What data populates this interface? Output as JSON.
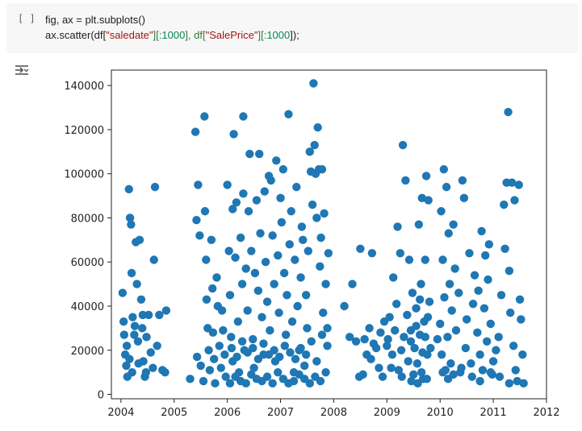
{
  "cell": {
    "run_bracket": "[ ]",
    "code_line1": "fig, ax = plt.subplots()",
    "code_line2_parts": [
      "ax.scatter(df[",
      "\"saledate\"",
      "][",
      ":1000",
      "], df[",
      "\"SalePrice\"",
      "][",
      ":1000",
      "]);"
    ]
  },
  "output": {
    "icon": "output-toggle-icon"
  },
  "colors": {
    "points": "#1f77b4",
    "cell_background": "#f7f7f7"
  },
  "chart_data": {
    "type": "scatter",
    "title": "",
    "xlabel": "",
    "ylabel": "",
    "xlim": [
      2003.82,
      2012.0
    ],
    "ylim": [
      -2000,
      147000
    ],
    "x_ticks": [
      "2004",
      "2005",
      "2006",
      "2007",
      "2008",
      "2009",
      "2010",
      "2011",
      "2012"
    ],
    "y_ticks": [
      "0",
      "20000",
      "40000",
      "60000",
      "80000",
      "100000",
      "120000",
      "140000"
    ],
    "grid": false,
    "points": [
      [
        2004.03,
        46000
      ],
      [
        2004.05,
        33000
      ],
      [
        2004.08,
        18000
      ],
      [
        2004.1,
        13000
      ],
      [
        2004.12,
        8000
      ],
      [
        2004.15,
        93000
      ],
      [
        2004.17,
        80000
      ],
      [
        2004.19,
        77000
      ],
      [
        2004.2,
        55000
      ],
      [
        2004.22,
        35000
      ],
      [
        2004.25,
        27000
      ],
      [
        2004.28,
        69000
      ],
      [
        2004.3,
        50000
      ],
      [
        2004.32,
        24000
      ],
      [
        2004.35,
        70000
      ],
      [
        2004.38,
        43000
      ],
      [
        2004.4,
        30000
      ],
      [
        2004.42,
        15000
      ],
      [
        2004.45,
        8000
      ],
      [
        2004.48,
        26000
      ],
      [
        2004.52,
        36000
      ],
      [
        2004.56,
        19000
      ],
      [
        2004.6,
        12000
      ],
      [
        2004.62,
        61000
      ],
      [
        2004.64,
        94000
      ],
      [
        2004.68,
        22000
      ],
      [
        2004.72,
        36000
      ],
      [
        2004.78,
        11000
      ],
      [
        2004.83,
        10000
      ],
      [
        2004.85,
        38000
      ],
      [
        2004.06,
        27000
      ],
      [
        2004.11,
        22000
      ],
      [
        2004.16,
        16000
      ],
      [
        2004.21,
        10000
      ],
      [
        2004.26,
        31000
      ],
      [
        2004.33,
        14000
      ],
      [
        2004.41,
        36000
      ],
      [
        2004.47,
        10000
      ],
      [
        2005.3,
        7000
      ],
      [
        2005.4,
        119000
      ],
      [
        2005.42,
        79000
      ],
      [
        2005.43,
        17000
      ],
      [
        2005.45,
        95000
      ],
      [
        2005.48,
        72000
      ],
      [
        2005.5,
        13000
      ],
      [
        2005.55,
        6000
      ],
      [
        2005.57,
        126000
      ],
      [
        2005.58,
        83000
      ],
      [
        2005.6,
        61000
      ],
      [
        2005.61,
        43000
      ],
      [
        2005.63,
        30000
      ],
      [
        2005.65,
        20000
      ],
      [
        2005.67,
        11000
      ],
      [
        2005.7,
        70000
      ],
      [
        2005.72,
        48000
      ],
      [
        2005.73,
        28000
      ],
      [
        2005.75,
        16000
      ],
      [
        2005.77,
        5000
      ],
      [
        2005.8,
        53000
      ],
      [
        2005.82,
        40000
      ],
      [
        2005.85,
        22000
      ],
      [
        2005.88,
        12000
      ],
      [
        2005.9,
        38000
      ],
      [
        2005.92,
        29000
      ],
      [
        2005.95,
        18000
      ],
      [
        2005.97,
        8000
      ],
      [
        2006.0,
        95000
      ],
      [
        2006.03,
        65000
      ],
      [
        2006.05,
        45000
      ],
      [
        2006.07,
        26000
      ],
      [
        2006.1,
        15000
      ],
      [
        2006.1,
        84000
      ],
      [
        2006.12,
        118000
      ],
      [
        2006.15,
        62000
      ],
      [
        2006.17,
        87000
      ],
      [
        2006.2,
        33000
      ],
      [
        2006.22,
        10000
      ],
      [
        2006.25,
        71000
      ],
      [
        2006.28,
        50000
      ],
      [
        2006.3,
        91000
      ],
      [
        2006.32,
        20000
      ],
      [
        2006.3,
        126000
      ],
      [
        2006.35,
        57000
      ],
      [
        2006.38,
        38000
      ],
      [
        2006.4,
        83000
      ],
      [
        2006.42,
        109000
      ],
      [
        2006.45,
        65000
      ],
      [
        2006.48,
        25000
      ],
      [
        2006.5,
        12000
      ],
      [
        2006.52,
        55000
      ],
      [
        2006.55,
        88000
      ],
      [
        2006.58,
        47000
      ],
      [
        2006.6,
        109000
      ],
      [
        2006.62,
        73000
      ],
      [
        2006.65,
        35000
      ],
      [
        2006.68,
        18000
      ],
      [
        2006.7,
        92000
      ],
      [
        2006.72,
        60000
      ],
      [
        2006.75,
        42000
      ],
      [
        2006.78,
        99000
      ],
      [
        2006.8,
        29000
      ],
      [
        2006.82,
        97000
      ],
      [
        2006.85,
        72000
      ],
      [
        2006.88,
        50000
      ],
      [
        2006.9,
        15000
      ],
      [
        2006.92,
        106000
      ],
      [
        2006.95,
        63000
      ],
      [
        2006.97,
        37000
      ],
      [
        2007.0,
        89000
      ],
      [
        2007.02,
        78000
      ],
      [
        2007.05,
        102000
      ],
      [
        2007.07,
        55000
      ],
      [
        2007.1,
        27000
      ],
      [
        2007.12,
        45000
      ],
      [
        2007.15,
        127000
      ],
      [
        2007.17,
        68000
      ],
      [
        2007.2,
        83000
      ],
      [
        2007.22,
        33000
      ],
      [
        2007.25,
        10000
      ],
      [
        2007.27,
        61000
      ],
      [
        2007.3,
        94000
      ],
      [
        2007.32,
        40000
      ],
      [
        2007.35,
        20000
      ],
      [
        2007.38,
        53000
      ],
      [
        2007.4,
        76000
      ],
      [
        2007.42,
        70000
      ],
      [
        2007.45,
        13000
      ],
      [
        2007.48,
        45000
      ],
      [
        2007.5,
        30000
      ],
      [
        2007.52,
        65000
      ],
      [
        2007.55,
        110000
      ],
      [
        2007.57,
        101000
      ],
      [
        2007.6,
        86000
      ],
      [
        2007.62,
        141000
      ],
      [
        2007.64,
        113000
      ],
      [
        2007.66,
        100000
      ],
      [
        2007.68,
        80000
      ],
      [
        2007.7,
        121000
      ],
      [
        2007.72,
        102000
      ],
      [
        2007.74,
        58000
      ],
      [
        2007.76,
        71000
      ],
      [
        2007.78,
        102000
      ],
      [
        2007.8,
        37000
      ],
      [
        2007.82,
        82000
      ],
      [
        2007.85,
        50000
      ],
      [
        2007.88,
        22000
      ],
      [
        2007.9,
        64000
      ],
      [
        2006.05,
        5000
      ],
      [
        2006.15,
        8000
      ],
      [
        2006.25,
        6000
      ],
      [
        2006.35,
        5000
      ],
      [
        2006.45,
        9000
      ],
      [
        2006.55,
        7000
      ],
      [
        2006.65,
        6000
      ],
      [
        2006.75,
        8000
      ],
      [
        2006.85,
        5000
      ],
      [
        2006.95,
        10000
      ],
      [
        2007.05,
        7000
      ],
      [
        2007.15,
        5000
      ],
      [
        2007.25,
        6000
      ],
      [
        2007.35,
        9000
      ],
      [
        2007.45,
        7000
      ],
      [
        2007.55,
        5000
      ],
      [
        2007.65,
        8000
      ],
      [
        2007.75,
        6000
      ],
      [
        2007.85,
        10000
      ],
      [
        2006.08,
        21000
      ],
      [
        2006.18,
        17000
      ],
      [
        2006.28,
        24000
      ],
      [
        2006.38,
        19000
      ],
      [
        2006.48,
        21000
      ],
      [
        2006.58,
        16000
      ],
      [
        2006.68,
        23000
      ],
      [
        2006.78,
        18000
      ],
      [
        2006.88,
        20000
      ],
      [
        2006.98,
        17000
      ],
      [
        2007.08,
        22000
      ],
      [
        2007.18,
        19000
      ],
      [
        2007.28,
        16000
      ],
      [
        2007.38,
        21000
      ],
      [
        2007.48,
        18000
      ],
      [
        2007.58,
        24000
      ],
      [
        2007.68,
        15000
      ],
      [
        2007.78,
        27000
      ],
      [
        2007.88,
        30000
      ],
      [
        2008.2,
        40000
      ],
      [
        2008.3,
        26000
      ],
      [
        2008.35,
        50000
      ],
      [
        2008.42,
        24000
      ],
      [
        2008.5,
        66000
      ],
      [
        2008.55,
        9000
      ],
      [
        2008.58,
        25000
      ],
      [
        2008.62,
        18000
      ],
      [
        2008.67,
        30000
      ],
      [
        2008.72,
        64000
      ],
      [
        2008.75,
        23000
      ],
      [
        2008.8,
        21000
      ],
      [
        2008.85,
        12000
      ],
      [
        2008.88,
        28000
      ],
      [
        2008.92,
        8000
      ],
      [
        2008.95,
        33000
      ],
      [
        2009.0,
        22000
      ],
      [
        2009.02,
        25000
      ],
      [
        2009.05,
        35000
      ],
      [
        2009.1,
        18000
      ],
      [
        2009.12,
        53000
      ],
      [
        2009.15,
        29000
      ],
      [
        2009.18,
        41000
      ],
      [
        2009.2,
        76000
      ],
      [
        2009.22,
        11000
      ],
      [
        2009.25,
        64000
      ],
      [
        2009.27,
        20000
      ],
      [
        2009.3,
        113000
      ],
      [
        2009.32,
        26000
      ],
      [
        2009.35,
        97000
      ],
      [
        2009.38,
        36000
      ],
      [
        2009.4,
        15000
      ],
      [
        2009.42,
        61000
      ],
      [
        2009.45,
        29000
      ],
      [
        2009.48,
        46000
      ],
      [
        2009.5,
        9000
      ],
      [
        2009.52,
        21000
      ],
      [
        2009.55,
        39000
      ],
      [
        2009.57,
        14000
      ],
      [
        2009.6,
        77000
      ],
      [
        2009.62,
        27000
      ],
      [
        2009.64,
        50000
      ],
      [
        2009.66,
        89000
      ],
      [
        2009.68,
        7000
      ],
      [
        2009.7,
        33000
      ],
      [
        2009.72,
        61000
      ],
      [
        2009.74,
        99000
      ],
      [
        2009.76,
        18000
      ],
      [
        2009.78,
        88000
      ],
      [
        2009.8,
        42000
      ],
      [
        2008.48,
        8000
      ],
      [
        2008.7,
        16000
      ],
      [
        2009.08,
        12000
      ],
      [
        2009.28,
        8000
      ],
      [
        2009.46,
        6000
      ],
      [
        2009.58,
        5000
      ],
      [
        2009.65,
        10000
      ],
      [
        2009.75,
        7000
      ],
      [
        2009.95,
        25000
      ],
      [
        2010.0,
        32000
      ],
      [
        2010.02,
        83000
      ],
      [
        2010.03,
        18000
      ],
      [
        2010.05,
        61000
      ],
      [
        2010.07,
        102000
      ],
      [
        2010.08,
        44000
      ],
      [
        2010.1,
        11000
      ],
      [
        2010.12,
        94000
      ],
      [
        2010.14,
        26000
      ],
      [
        2010.16,
        73000
      ],
      [
        2010.18,
        50000
      ],
      [
        2010.2,
        14000
      ],
      [
        2010.22,
        38000
      ],
      [
        2010.25,
        77000
      ],
      [
        2010.28,
        57000
      ],
      [
        2010.3,
        29000
      ],
      [
        2010.35,
        46000
      ],
      [
        2010.38,
        10000
      ],
      [
        2010.42,
        97000
      ],
      [
        2010.45,
        89000
      ],
      [
        2010.48,
        21000
      ],
      [
        2010.5,
        34000
      ],
      [
        2010.55,
        64000
      ],
      [
        2010.58,
        14000
      ],
      [
        2010.62,
        41000
      ],
      [
        2010.65,
        54000
      ],
      [
        2010.7,
        28000
      ],
      [
        2010.72,
        47000
      ],
      [
        2010.75,
        18000
      ],
      [
        2010.78,
        74000
      ],
      [
        2010.8,
        11000
      ],
      [
        2010.83,
        39000
      ],
      [
        2010.85,
        63000
      ],
      [
        2010.88,
        24000
      ],
      [
        2010.9,
        52000
      ],
      [
        2010.92,
        68000
      ],
      [
        2010.95,
        32000
      ],
      [
        2010.98,
        9000
      ],
      [
        2011.0,
        15000
      ],
      [
        2011.05,
        20000
      ],
      [
        2011.1,
        26000
      ],
      [
        2011.15,
        45000
      ],
      [
        2011.2,
        86000
      ],
      [
        2011.22,
        66000
      ],
      [
        2011.25,
        96000
      ],
      [
        2011.28,
        128000
      ],
      [
        2011.3,
        56000
      ],
      [
        2011.32,
        37000
      ],
      [
        2011.35,
        96000
      ],
      [
        2011.38,
        22000
      ],
      [
        2011.4,
        88000
      ],
      [
        2011.42,
        11000
      ],
      [
        2011.45,
        6000
      ],
      [
        2011.48,
        95000
      ],
      [
        2011.5,
        43000
      ],
      [
        2011.52,
        34000
      ],
      [
        2011.55,
        18000
      ],
      [
        2011.57,
        5000
      ],
      [
        2010.05,
        10000
      ],
      [
        2010.15,
        7000
      ],
      [
        2010.25,
        9000
      ],
      [
        2010.4,
        12000
      ],
      [
        2010.6,
        8000
      ],
      [
        2010.75,
        6000
      ],
      [
        2010.95,
        10000
      ],
      [
        2011.12,
        8000
      ],
      [
        2011.3,
        5000
      ],
      [
        2009.45,
        24000
      ],
      [
        2009.55,
        31000
      ],
      [
        2009.62,
        43000
      ],
      [
        2009.67,
        19000
      ],
      [
        2009.72,
        26000
      ],
      [
        2009.77,
        35000
      ],
      [
        2009.82,
        21000
      ]
    ]
  }
}
